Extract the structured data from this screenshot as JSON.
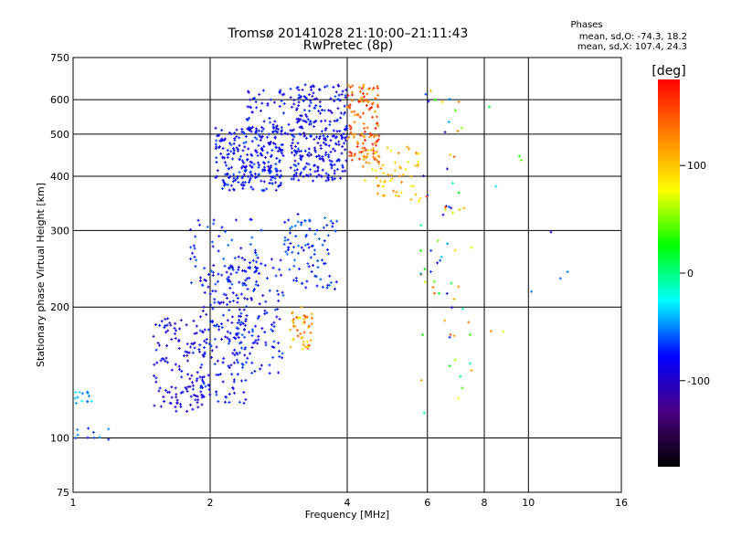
{
  "chart_data": {
    "type": "scatter",
    "title": "Tromsø 20141028 21:10:00–21:11:43",
    "subtitle": "RwPretec (8p)",
    "stats": {
      "heading": "Phases",
      "line1": "mean, sd,O: -74.3, 18.2",
      "line2": "mean, sd,X: 107.4, 24.3"
    },
    "xlabel": "Frequency [MHz]",
    "ylabel": "Stationary phase Virtual Height [km]",
    "x_scale": "log",
    "y_scale": "log",
    "xlim": [
      1,
      16
    ],
    "ylim": [
      75,
      750
    ],
    "x_ticks": [
      {
        "value": 1,
        "label": "1"
      },
      {
        "value": 2,
        "label": "2"
      },
      {
        "value": 4,
        "label": "4"
      },
      {
        "value": 6,
        "label": "6"
      },
      {
        "value": 8,
        "label": "8"
      },
      {
        "value": 10,
        "label": "10"
      },
      {
        "value": 16,
        "label": "16"
      }
    ],
    "y_ticks": [
      {
        "value": 75,
        "label": "75"
      },
      {
        "value": 100,
        "label": "100"
      },
      {
        "value": 200,
        "label": "200"
      },
      {
        "value": 300,
        "label": "300"
      },
      {
        "value": 400,
        "label": "400"
      },
      {
        "value": 500,
        "label": "500"
      },
      {
        "value": 600,
        "label": "600"
      },
      {
        "value": 750,
        "label": "750"
      }
    ],
    "x_grid": [
      2,
      4,
      6,
      8,
      10
    ],
    "y_grid": [
      100,
      200,
      300,
      400,
      500,
      600
    ],
    "grid": true,
    "colorbar": {
      "label": "[deg]",
      "min": -180,
      "max": 180,
      "ticks": [
        {
          "value": 100,
          "label": "100"
        },
        {
          "value": 0,
          "label": "0"
        },
        {
          "value": -100,
          "label": "-100"
        }
      ],
      "colors": [
        "#000000",
        "#4b0082",
        "#0000ff",
        "#00ffff",
        "#00ff00",
        "#ffff00",
        "#ff8000",
        "#ff0000"
      ]
    },
    "clusters": [
      {
        "x": [
          1.0,
          1.1
        ],
        "y": [
          120,
          128
        ],
        "phase": [
          -60,
          -20
        ],
        "n": 14
      },
      {
        "x": [
          1.0,
          1.3
        ],
        "y": [
          97,
          108
        ],
        "phase": [
          -90,
          -40
        ],
        "n": 10
      },
      {
        "x": [
          1.5,
          1.95
        ],
        "y": [
          115,
          190
        ],
        "phase": [
          -110,
          -70
        ],
        "n": 130
      },
      {
        "x": [
          1.9,
          2.4
        ],
        "y": [
          120,
          250
        ],
        "phase": [
          -100,
          -60
        ],
        "n": 160
      },
      {
        "x": [
          2.2,
          2.9
        ],
        "y": [
          140,
          260
        ],
        "phase": [
          -95,
          -60
        ],
        "n": 120
      },
      {
        "x": [
          1.8,
          2.6
        ],
        "y": [
          220,
          320
        ],
        "phase": [
          -90,
          -55
        ],
        "n": 60
      },
      {
        "x": [
          2.05,
          2.9
        ],
        "y": [
          370,
          520
        ],
        "phase": [
          -95,
          -60
        ],
        "n": 260
      },
      {
        "x": [
          2.4,
          3.2
        ],
        "y": [
          500,
          640
        ],
        "phase": [
          -100,
          -65
        ],
        "n": 70
      },
      {
        "x": [
          3.0,
          4.0
        ],
        "y": [
          390,
          520
        ],
        "phase": [
          -100,
          -65
        ],
        "n": 180
      },
      {
        "x": [
          3.1,
          4.0
        ],
        "y": [
          520,
          650
        ],
        "phase": [
          -100,
          -60
        ],
        "n": 90
      },
      {
        "x": [
          2.9,
          3.8
        ],
        "y": [
          220,
          330
        ],
        "phase": [
          -85,
          -50
        ],
        "n": 90
      },
      {
        "x": [
          3.0,
          3.35
        ],
        "y": [
          160,
          200
        ],
        "phase": [
          80,
          150
        ],
        "n": 45
      },
      {
        "x": [
          4.0,
          4.7
        ],
        "y": [
          430,
          650
        ],
        "phase": [
          110,
          175
        ],
        "n": 120
      },
      {
        "x": [
          4.3,
          5.8
        ],
        "y": [
          350,
          470
        ],
        "phase": [
          70,
          130
        ],
        "n": 70
      },
      {
        "x": [
          5.8,
          7.5
        ],
        "y": [
          110,
          640
        ],
        "phase": [
          -110,
          150
        ],
        "n": 70
      },
      {
        "x": [
          8.0,
          12.6
        ],
        "y": [
          140,
          600
        ],
        "phase": [
          -100,
          150
        ],
        "n": 10
      }
    ]
  }
}
